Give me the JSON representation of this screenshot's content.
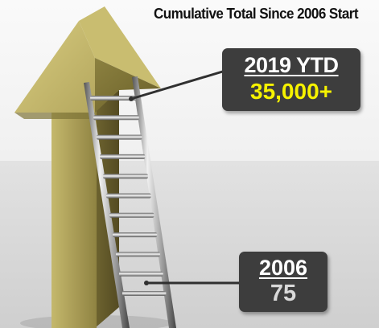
{
  "title": "Cumulative Total Since 2006 Start",
  "callouts": {
    "top": {
      "heading": "2019 YTD",
      "value": "35,000+",
      "value_color": "#f6f200"
    },
    "bottom": {
      "heading": "2006",
      "value": "75",
      "value_color": "#d9d9d9"
    }
  },
  "icons": [
    "gold-up-arrow-icon",
    "ladder-icon"
  ],
  "colors": {
    "callout_background": "#3d3d3d",
    "arrow_gold": "#a69a54",
    "floor_gray": "#d9d9d9"
  }
}
